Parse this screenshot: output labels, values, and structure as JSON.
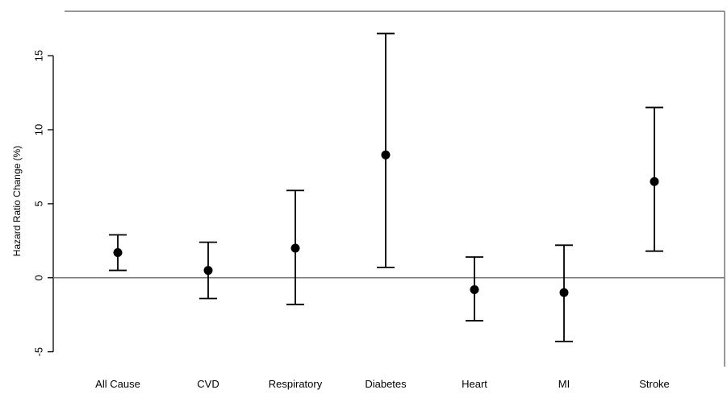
{
  "chart_data": {
    "type": "scatter",
    "subtype": "point-estimate with confidence interval error bars",
    "title": "",
    "xlabel": "",
    "ylabel": "Hazard Ratio Change (%)",
    "ylim": [
      -6,
      18
    ],
    "yticks": [
      -5,
      0,
      5,
      10,
      15
    ],
    "ytick_labels": [
      "-5",
      "0",
      "5",
      "10",
      "15"
    ],
    "reference_line": 0,
    "grid": false,
    "legend": "none",
    "categories": [
      "All Cause",
      "CVD",
      "Respiratory",
      "Diabetes",
      "Heart",
      "MI",
      "Stroke"
    ],
    "series": [
      {
        "estimate": [
          1.7,
          0.5,
          2.0,
          8.3,
          -0.8,
          -1.0,
          6.5
        ],
        "lower": [
          0.5,
          -1.4,
          -1.8,
          0.7,
          -2.9,
          -4.3,
          1.8
        ],
        "upper": [
          2.9,
          2.4,
          5.9,
          16.5,
          1.4,
          2.2,
          11.5
        ]
      }
    ],
    "colors": {
      "marks": "#000000",
      "axis": "#000000",
      "frame": "#777777",
      "reference_line": "#777777"
    }
  }
}
